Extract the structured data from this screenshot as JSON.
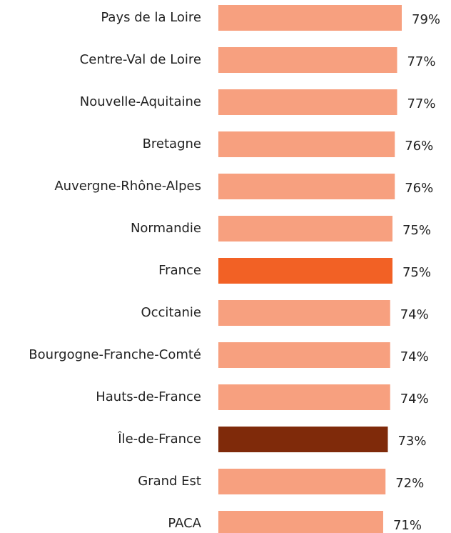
{
  "chart_data": {
    "type": "barh",
    "categories": [
      "Pays de la Loire",
      "Centre-Val de Loire",
      "Nouvelle-Aquitaine",
      "Bretagne",
      "Auvergne-Rhône-Alpes",
      "Normandie",
      "France",
      "Occitanie",
      "Bourgogne-Franche-Comté",
      "Hauts-de-France",
      "Île-de-France",
      "Grand Est",
      "PACA"
    ],
    "values": [
      79,
      77,
      77,
      76,
      76,
      75,
      75,
      74,
      74,
      74,
      73,
      72,
      71
    ],
    "value_labels": [
      "79%",
      "77%",
      "77%",
      "76%",
      "76%",
      "75%",
      "75%",
      "74%",
      "74%",
      "74%",
      "73%",
      "72%",
      "71%"
    ],
    "colors": [
      "#f7a07f",
      "#f7a07f",
      "#f7a07f",
      "#f7a07f",
      "#f7a07f",
      "#f7a07f",
      "#f26125",
      "#f7a07f",
      "#f7a07f",
      "#f7a07f",
      "#7f2a0a",
      "#f7a07f",
      "#f7a07f"
    ]
  }
}
